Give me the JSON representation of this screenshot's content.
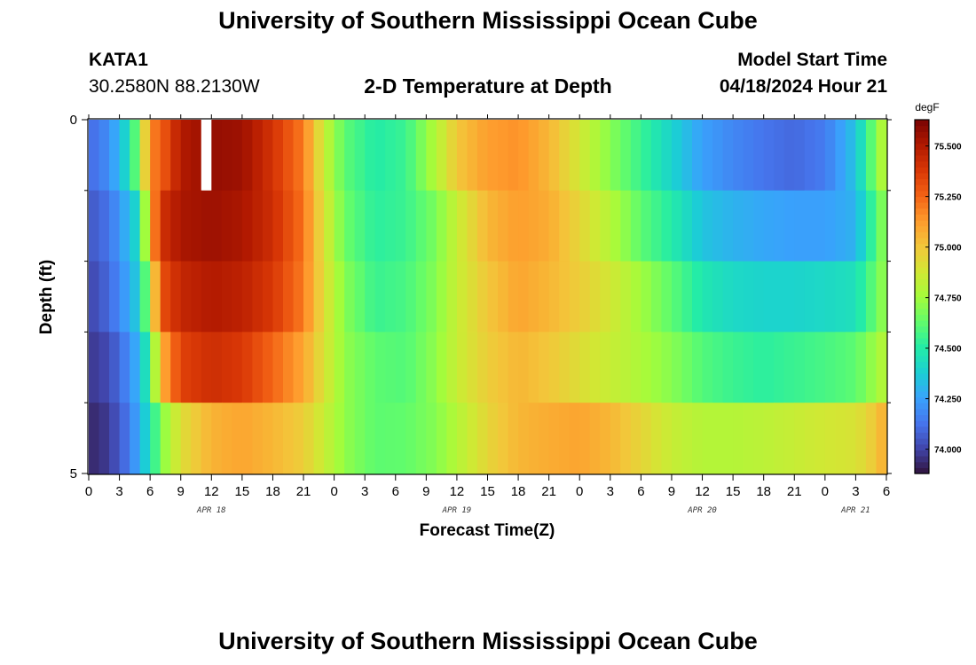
{
  "header": {
    "title": "University of Southern Mississippi Ocean Cube",
    "station_id": "KATA1",
    "coords": "30.2580N  88.2130W",
    "subtitle": "2-D Temperature at Depth",
    "model_start_label": "Model Start Time",
    "model_start_value": "04/18/2024 Hour 21"
  },
  "footer": {
    "title": "University of Southern Mississippi Ocean Cube"
  },
  "colors": {
    "palette": [
      "#30123b",
      "#4145ab",
      "#4675ed",
      "#39a2fc",
      "#1bcfd4",
      "#24eca6",
      "#61fc6c",
      "#a4fc3b",
      "#d1e834",
      "#f3c63a",
      "#fe9b2d",
      "#f36315",
      "#d93806",
      "#b11901",
      "#7a0403"
    ]
  },
  "chart_data": {
    "type": "heatmap",
    "title": "2-D Temperature at Depth",
    "xlabel": "Forecast Time(Z)",
    "ylabel": "Depth (ft)",
    "x_unit": "hours since APR 18 00Z",
    "x_step_hours": 1,
    "x_range": [
      0,
      78
    ],
    "x_ticks": [
      {
        "hour": 0,
        "label": "0"
      },
      {
        "hour": 3,
        "label": "3"
      },
      {
        "hour": 6,
        "label": "6"
      },
      {
        "hour": 9,
        "label": "9"
      },
      {
        "hour": 12,
        "label": "12"
      },
      {
        "hour": 15,
        "label": "15"
      },
      {
        "hour": 18,
        "label": "18"
      },
      {
        "hour": 21,
        "label": "21"
      },
      {
        "hour": 24,
        "label": "0"
      },
      {
        "hour": 27,
        "label": "3"
      },
      {
        "hour": 30,
        "label": "6"
      },
      {
        "hour": 33,
        "label": "9"
      },
      {
        "hour": 36,
        "label": "12"
      },
      {
        "hour": 39,
        "label": "15"
      },
      {
        "hour": 42,
        "label": "18"
      },
      {
        "hour": 45,
        "label": "21"
      },
      {
        "hour": 48,
        "label": "0"
      },
      {
        "hour": 51,
        "label": "3"
      },
      {
        "hour": 54,
        "label": "6"
      },
      {
        "hour": 57,
        "label": "9"
      },
      {
        "hour": 60,
        "label": "12"
      },
      {
        "hour": 63,
        "label": "15"
      },
      {
        "hour": 66,
        "label": "18"
      },
      {
        "hour": 69,
        "label": "21"
      },
      {
        "hour": 72,
        "label": "0"
      },
      {
        "hour": 75,
        "label": "3"
      },
      {
        "hour": 78,
        "label": "6"
      }
    ],
    "date_labels": [
      {
        "hour": 12,
        "label": "APR 18"
      },
      {
        "hour": 36,
        "label": "APR 19"
      },
      {
        "hour": 60,
        "label": "APR 20"
      },
      {
        "hour": 75,
        "label": "APR 21"
      }
    ],
    "y_range": [
      0,
      5
    ],
    "y_tick_labels": [
      {
        "value": 0,
        "label": "0"
      },
      {
        "value": 5,
        "label": "5"
      }
    ],
    "y_minor_ticks": [
      1,
      2,
      3,
      4
    ],
    "depth_levels": [
      0.5,
      1.5,
      2.5,
      3.5,
      4.5
    ],
    "depth_layers": 5,
    "missing_cells": [
      {
        "hour": 11,
        "layer": 0
      }
    ],
    "colorbar": {
      "unit": "degF",
      "min": 73.88,
      "max": 75.63,
      "ticks": [
        {
          "value": 74.0,
          "label": "74.000"
        },
        {
          "value": 74.25,
          "label": "74.250"
        },
        {
          "value": 74.5,
          "label": "74.500"
        },
        {
          "value": 74.75,
          "label": "74.750"
        },
        {
          "value": 75.0,
          "label": "75.000"
        },
        {
          "value": 75.25,
          "label": "75.250"
        },
        {
          "value": 75.5,
          "label": "75.500"
        }
      ]
    },
    "keyframes": [
      {
        "hour": 0,
        "temps": [
          74.1,
          74.05,
          74.0,
          73.97,
          73.93
        ]
      },
      {
        "hour": 2,
        "temps": [
          74.2,
          74.13,
          74.1,
          74.02,
          73.98
        ]
      },
      {
        "hour": 4,
        "temps": [
          74.45,
          74.33,
          74.28,
          74.2,
          74.15
        ]
      },
      {
        "hour": 5,
        "temps": [
          74.75,
          74.45,
          74.4,
          74.33,
          74.3
        ]
      },
      {
        "hour": 6,
        "temps": [
          75.18,
          75.05,
          74.8,
          74.55,
          74.45
        ]
      },
      {
        "hour": 7,
        "temps": [
          75.25,
          75.4,
          75.3,
          75.05,
          74.68
        ]
      },
      {
        "hour": 9,
        "temps": [
          75.5,
          75.52,
          75.45,
          75.35,
          74.92
        ]
      },
      {
        "hour": 12,
        "temps": [
          75.57,
          75.55,
          75.5,
          75.42,
          75.06
        ]
      },
      {
        "hour": 15,
        "temps": [
          75.55,
          75.52,
          75.47,
          75.38,
          75.1
        ]
      },
      {
        "hour": 18,
        "temps": [
          75.4,
          75.42,
          75.38,
          75.25,
          75.05
        ]
      },
      {
        "hour": 21,
        "temps": [
          75.2,
          75.22,
          75.2,
          75.1,
          74.98
        ]
      },
      {
        "hour": 23,
        "temps": [
          74.85,
          74.9,
          74.92,
          74.9,
          74.85
        ]
      },
      {
        "hour": 25,
        "temps": [
          74.62,
          74.65,
          74.7,
          74.72,
          74.72
        ]
      },
      {
        "hour": 28,
        "temps": [
          74.5,
          74.52,
          74.55,
          74.62,
          74.62
        ]
      },
      {
        "hour": 31,
        "temps": [
          74.55,
          74.55,
          74.58,
          74.6,
          74.63
        ]
      },
      {
        "hour": 34,
        "temps": [
          74.8,
          74.68,
          74.7,
          74.72,
          74.7
        ]
      },
      {
        "hour": 36,
        "temps": [
          75.0,
          74.85,
          74.85,
          74.85,
          74.8
        ]
      },
      {
        "hour": 39,
        "temps": [
          75.12,
          75.05,
          75.0,
          74.98,
          74.95
        ]
      },
      {
        "hour": 42,
        "temps": [
          75.15,
          75.12,
          75.1,
          75.05,
          75.05
        ]
      },
      {
        "hour": 45,
        "temps": [
          75.05,
          75.08,
          75.05,
          75.0,
          75.08
        ]
      },
      {
        "hour": 48,
        "temps": [
          74.88,
          74.95,
          74.98,
          74.92,
          75.1
        ]
      },
      {
        "hour": 51,
        "temps": [
          74.7,
          74.8,
          74.88,
          74.85,
          75.05
        ]
      },
      {
        "hour": 54,
        "temps": [
          74.55,
          74.62,
          74.75,
          74.78,
          74.95
        ]
      },
      {
        "hour": 57,
        "temps": [
          74.4,
          74.5,
          74.62,
          74.7,
          74.85
        ]
      },
      {
        "hour": 60,
        "temps": [
          74.25,
          74.35,
          74.48,
          74.6,
          74.8
        ]
      },
      {
        "hour": 63,
        "temps": [
          74.18,
          74.3,
          74.42,
          74.55,
          74.8
        ]
      },
      {
        "hour": 66,
        "temps": [
          74.13,
          74.27,
          74.4,
          74.52,
          74.82
        ]
      },
      {
        "hour": 69,
        "temps": [
          74.1,
          74.25,
          74.4,
          74.55,
          74.85
        ]
      },
      {
        "hour": 72,
        "temps": [
          74.15,
          74.25,
          74.42,
          74.58,
          74.88
        ]
      },
      {
        "hour": 75,
        "temps": [
          74.35,
          74.3,
          74.45,
          74.62,
          74.9
        ]
      },
      {
        "hour": 77,
        "temps": [
          74.7,
          74.6,
          74.65,
          74.75,
          75.0
        ]
      },
      {
        "hour": 78,
        "temps": [
          74.85,
          74.75,
          74.75,
          74.82,
          75.1
        ]
      }
    ]
  }
}
